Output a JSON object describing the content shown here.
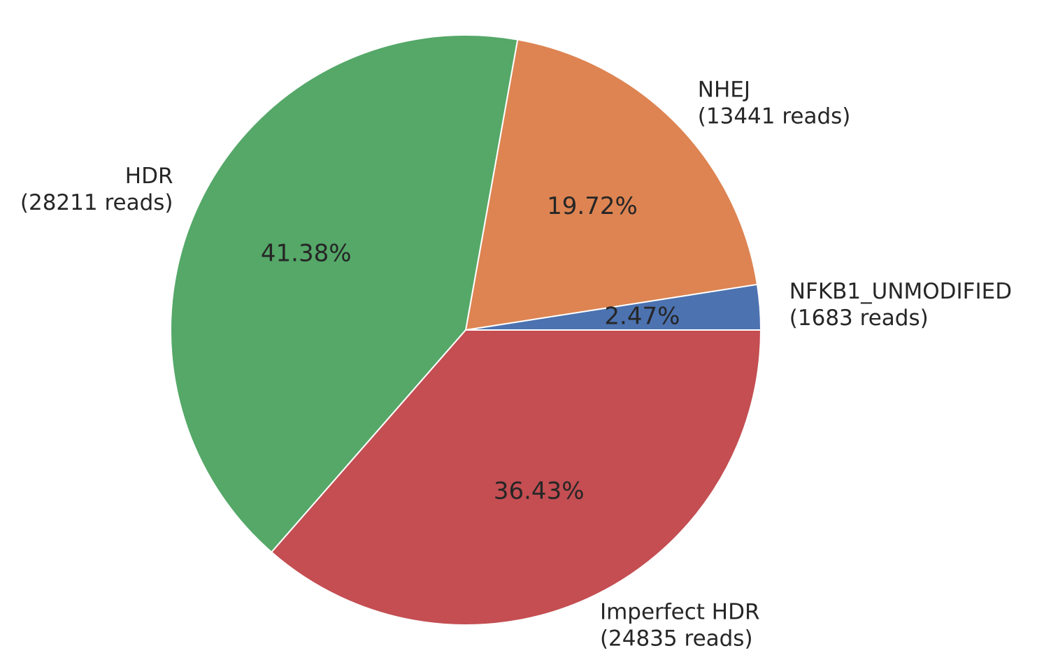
{
  "chart_data": {
    "type": "pie",
    "title": "",
    "slices": [
      {
        "name": "NFKB1_UNMODIFIED",
        "reads_label": "(1683 reads)",
        "value": 1683,
        "percent_label": "2.47%",
        "color": "#4c72b0"
      },
      {
        "name": "NHEJ",
        "reads_label": "(13441 reads)",
        "value": 13441,
        "percent_label": "19.72%",
        "color": "#dd8452"
      },
      {
        "name": "HDR",
        "reads_label": "(28211 reads)",
        "value": 28211,
        "percent_label": "41.38%",
        "color": "#55a868"
      },
      {
        "name": "Imperfect HDR",
        "reads_label": "(24835 reads)",
        "value": 24835,
        "percent_label": "36.43%",
        "color": "#c44e52"
      }
    ],
    "start_angle_deg": 0,
    "direction": "counterclockwise",
    "edge_color": "#ffffff",
    "legend": "none"
  }
}
